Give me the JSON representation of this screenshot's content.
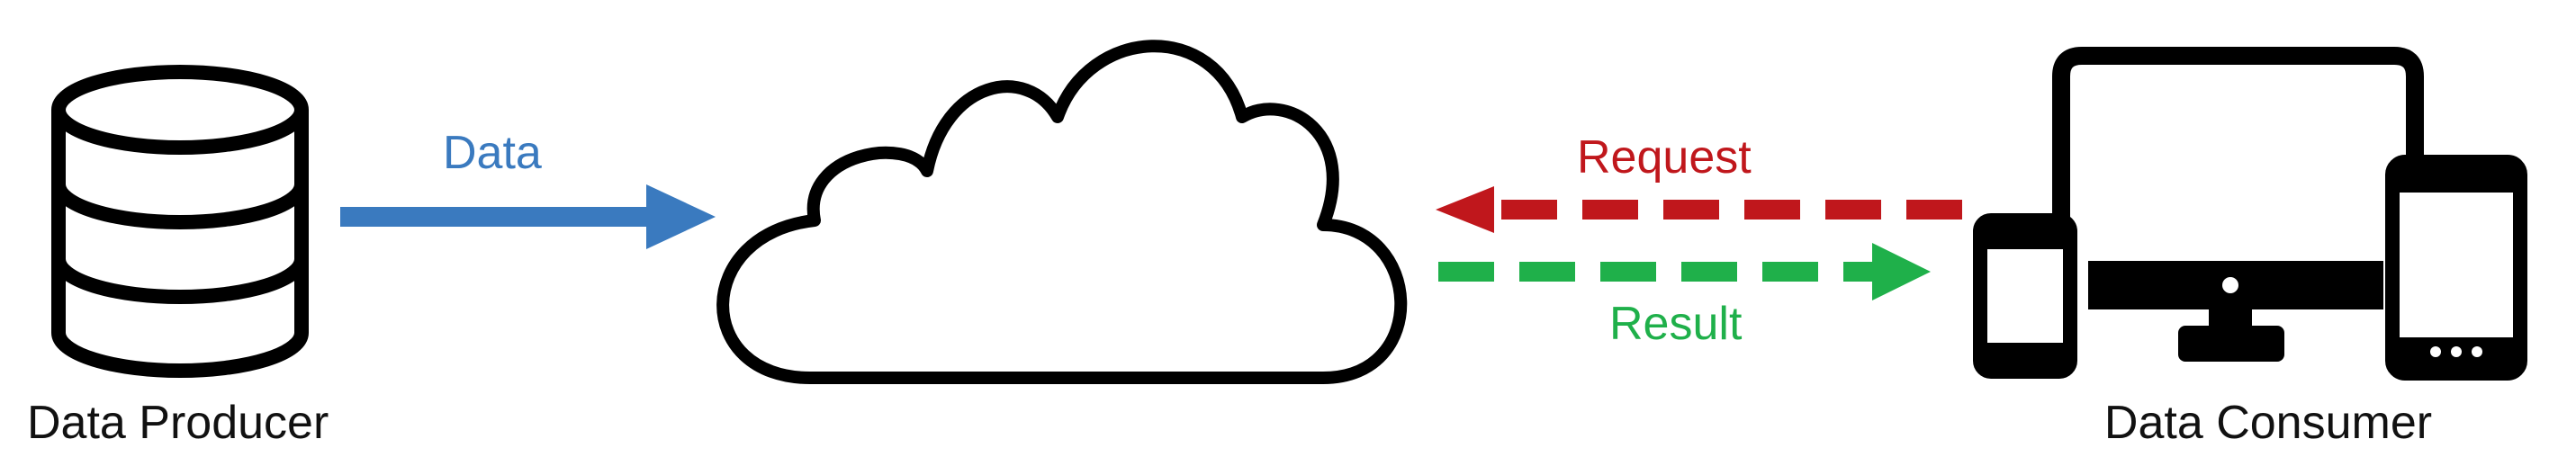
{
  "labels": {
    "producer": "Data Producer",
    "consumer": "Data Consumer",
    "data": "Data",
    "request": "Request",
    "result": "Result"
  },
  "colors": {
    "data_arrow": "#3a7abf",
    "request_arrow": "#c0171c",
    "result_arrow": "#1fb04a",
    "outline": "#000000"
  },
  "icons": {
    "producer": "database-icon",
    "middle": "cloud-icon",
    "consumer": "devices-icon"
  }
}
